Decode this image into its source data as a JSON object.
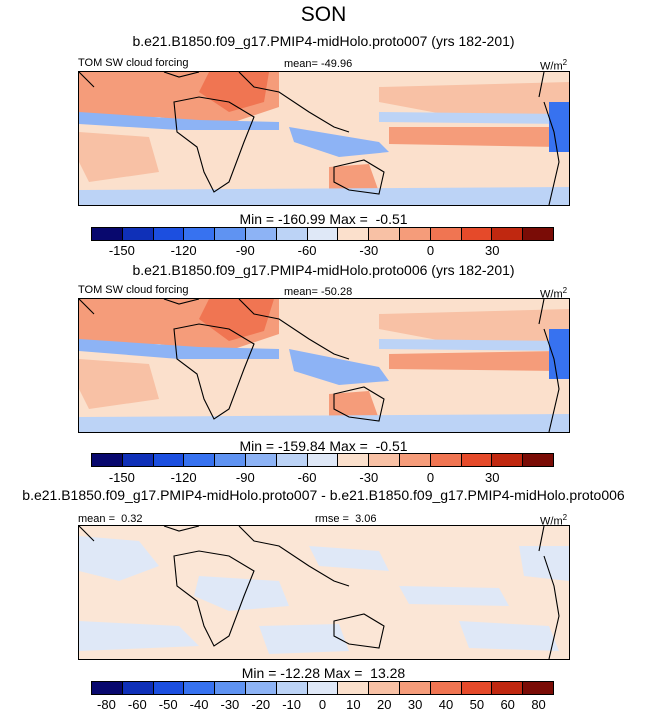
{
  "colors": {
    "land": "#000000"
  },
  "chart_data": [
    {
      "type": "heatmap",
      "title": "SON",
      "subtitle": "b.e21.B1850.f09_g17.PMIP4-midHolo.proto007 (yrs 182-201)",
      "variable": "TOM SW cloud forcing",
      "mean_label": "mean=",
      "mean": "-49.96",
      "units": "W/m",
      "units_sup": "2",
      "min_label": "Min =",
      "min": "-160.99",
      "max_label": "Max =",
      "max": "-0.51",
      "colorbar_ticks": [
        "-150",
        "-120",
        "-90",
        "-60",
        "-30",
        "0",
        "30"
      ],
      "colorbar_colors": [
        "#08086e",
        "#0f30b8",
        "#1c4fe0",
        "#3772f0",
        "#5f93f2",
        "#8db3f5",
        "#bcd3f6",
        "#dfe8f7",
        "#fbe0cc",
        "#f8c1a5",
        "#f59c7a",
        "#f07552",
        "#e54a2a",
        "#c02810",
        "#7a0c06"
      ]
    },
    {
      "type": "heatmap",
      "subtitle": "b.e21.B1850.f09_g17.PMIP4-midHolo.proto006 (yrs 182-201)",
      "variable": "TOM SW cloud forcing",
      "mean_label": "mean=",
      "mean": "-50.28",
      "units": "W/m",
      "units_sup": "2",
      "min_label": "Min =",
      "min": "-159.84",
      "max_label": "Max =",
      "max": "-0.51",
      "colorbar_ticks": [
        "-150",
        "-120",
        "-90",
        "-60",
        "-30",
        "0",
        "30"
      ],
      "colorbar_colors": [
        "#08086e",
        "#0f30b8",
        "#1c4fe0",
        "#3772f0",
        "#5f93f2",
        "#8db3f5",
        "#bcd3f6",
        "#dfe8f7",
        "#fbe0cc",
        "#f8c1a5",
        "#f59c7a",
        "#f07552",
        "#e54a2a",
        "#c02810",
        "#7a0c06"
      ]
    },
    {
      "type": "heatmap",
      "subtitle": "b.e21.B1850.f09_g17.PMIP4-midHolo.proto007 - b.e21.B1850.f09_g17.PMIP4-midHolo.proto006",
      "mean_label": "mean =",
      "mean": "0.32",
      "rmse_label": "rmse =",
      "rmse": "3.06",
      "units": "W/m",
      "units_sup": "2",
      "min_label": "Min =",
      "min": "-12.28",
      "max_label": "Max =",
      "max": "13.28",
      "colorbar_ticks": [
        "-80",
        "-60",
        "-50",
        "-40",
        "-30",
        "-20",
        "-10",
        "0",
        "10",
        "20",
        "30",
        "40",
        "50",
        "60",
        "80"
      ],
      "colorbar_colors": [
        "#08086e",
        "#0f30b8",
        "#1c4fe0",
        "#3772f0",
        "#5f93f2",
        "#8db3f5",
        "#bcd3f6",
        "#dfe8f7",
        "#fbe0cc",
        "#f8c1a5",
        "#f59c7a",
        "#f07552",
        "#e54a2a",
        "#c02810",
        "#7a0c06"
      ]
    }
  ]
}
